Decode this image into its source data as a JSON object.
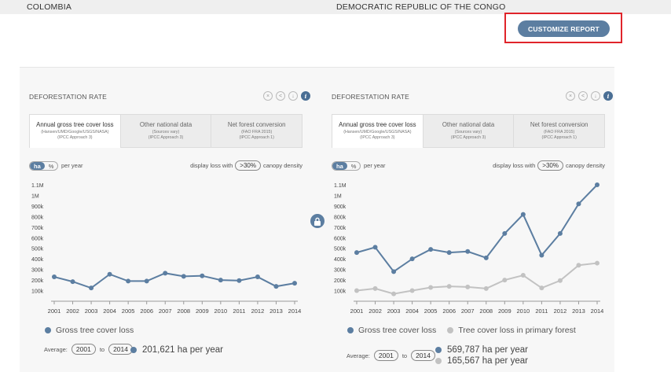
{
  "header": {
    "country_left": "COLOMBIA",
    "country_right": "DEMOCRATIC REPUBLIC OF THE CONGO",
    "customize_label": "CUSTOMIZE REPORT"
  },
  "colors": {
    "accent": "#5c7ea1",
    "highlight_border": "#e0242a",
    "secondary_series": "#c2c2c2"
  },
  "widgets": [
    {
      "title": "DEFORESTATION RATE",
      "icons": [
        "close-icon",
        "share-icon",
        "download-icon",
        "info-icon"
      ],
      "tabs": [
        {
          "label": "Annual gross tree cover loss",
          "sub": "(Hansen/UMD/Google/USGS/NASA)",
          "sub2": "(IPCC Approach 3)",
          "active": true
        },
        {
          "label": "Other national data",
          "sub": "(Sources vary)",
          "sub2": "(IPCC Approach 3)",
          "active": false
        },
        {
          "label": "Net forest conversion",
          "sub": "(FAO FRA 2015)",
          "sub2": "(IPCC Approach 1)",
          "active": false
        }
      ],
      "unit_ha": "ha",
      "unit_pct": "%",
      "per_year": "per year",
      "density_prefix": "display loss with",
      "density_value": ">30%",
      "density_suffix": "canopy density",
      "legend": [
        {
          "label": "Gross tree cover loss",
          "color": "#5c7ea1"
        }
      ],
      "average_label": "Average:",
      "average_from": "2001",
      "average_to_word": "to",
      "average_to": "2014",
      "averages": [
        {
          "text": "201,621 ha per year",
          "color": "#5c7ea1"
        }
      ]
    },
    {
      "title": "DEFORESTATION RATE",
      "icons": [
        "close-icon",
        "share-icon",
        "download-icon",
        "info-icon"
      ],
      "tabs": [
        {
          "label": "Annual gross tree cover loss",
          "sub": "(Hansen/UMD/Google/USGS/NASA)",
          "sub2": "(IPCC Approach 3)",
          "active": true
        },
        {
          "label": "Other national data",
          "sub": "(Sources vary)",
          "sub2": "(IPCC Approach 3)",
          "active": false
        },
        {
          "label": "Net forest conversion",
          "sub": "(FAO FRA 2015)",
          "sub2": "(IPCC Approach 1)",
          "active": false
        }
      ],
      "unit_ha": "ha",
      "unit_pct": "%",
      "per_year": "per year",
      "density_prefix": "display loss with",
      "density_value": ">30%",
      "density_suffix": "canopy density",
      "legend": [
        {
          "label": "Gross tree cover loss",
          "color": "#5c7ea1"
        },
        {
          "label": "Tree cover loss in primary forest",
          "color": "#c2c2c2"
        }
      ],
      "average_label": "Average:",
      "average_from": "2001",
      "average_to_word": "to",
      "average_to": "2014",
      "averages": [
        {
          "text": "569,787 ha per year",
          "color": "#5c7ea1"
        },
        {
          "text": "165,567 ha per year",
          "color": "#c2c2c2"
        }
      ]
    }
  ],
  "chart_data": [
    {
      "type": "line",
      "x": [
        2001,
        2002,
        2003,
        2004,
        2005,
        2006,
        2007,
        2008,
        2009,
        2010,
        2011,
        2012,
        2013,
        2014
      ],
      "ytick_labels": [
        "100k",
        "200k",
        "300k",
        "400k",
        "500k",
        "600k",
        "700k",
        "800k",
        "900k",
        "1M",
        "1.1M"
      ],
      "ytick_values": [
        100000,
        200000,
        300000,
        400000,
        500000,
        600000,
        700000,
        800000,
        900000,
        1000000,
        1100000
      ],
      "ylim": [
        0,
        1100000
      ],
      "series": [
        {
          "name": "Gross tree cover loss",
          "color": "#5c7ea1",
          "values": [
            230000,
            185000,
            125000,
            255000,
            190000,
            190000,
            265000,
            235000,
            240000,
            200000,
            195000,
            230000,
            140000,
            170000
          ]
        }
      ]
    },
    {
      "type": "line",
      "x": [
        2001,
        2002,
        2003,
        2004,
        2005,
        2006,
        2007,
        2008,
        2009,
        2010,
        2011,
        2012,
        2013,
        2014
      ],
      "ytick_labels": [
        "100k",
        "200k",
        "300k",
        "400k",
        "500k",
        "600k",
        "700k",
        "800k",
        "900k",
        "1M",
        "1.1M"
      ],
      "ytick_values": [
        100000,
        200000,
        300000,
        400000,
        500000,
        600000,
        700000,
        800000,
        900000,
        1000000,
        1100000
      ],
      "ylim": [
        0,
        1100000
      ],
      "series": [
        {
          "name": "Gross tree cover loss",
          "color": "#5c7ea1",
          "values": [
            460000,
            510000,
            280000,
            400000,
            490000,
            460000,
            470000,
            410000,
            640000,
            820000,
            435000,
            640000,
            920000,
            1100000
          ]
        },
        {
          "name": "Tree cover loss in primary forest",
          "color": "#c2c2c2",
          "values": [
            100000,
            120000,
            70000,
            100000,
            130000,
            140000,
            135000,
            120000,
            200000,
            245000,
            125000,
            195000,
            340000,
            360000
          ]
        }
      ]
    }
  ]
}
